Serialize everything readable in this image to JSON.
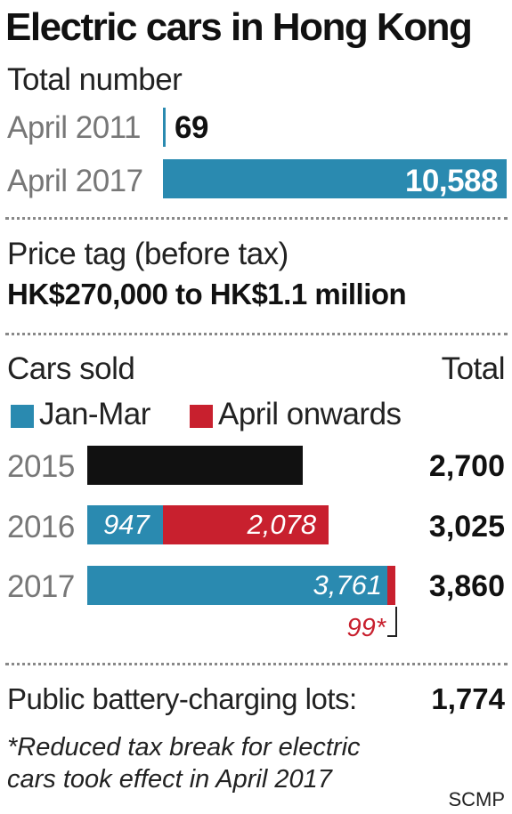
{
  "title": "Electric cars in Hong Kong",
  "total_section": {
    "heading": "Total number",
    "rows": [
      {
        "label": "April 2011",
        "value": "69"
      },
      {
        "label": "April 2017",
        "value": "10,588"
      }
    ]
  },
  "price_section": {
    "heading": "Price tag (before tax)",
    "range": "HK$270,000 to HK$1.1 million"
  },
  "sales_section": {
    "heading": "Cars sold",
    "total_heading": "Total",
    "legend": [
      {
        "label": "Jan-Mar",
        "color": "#2a8ab0"
      },
      {
        "label": "April onwards",
        "color": "#c8202e"
      }
    ],
    "footnote_marker": "99*"
  },
  "charging": {
    "label": "Public battery-charging lots:",
    "value": "1,774"
  },
  "footnote": {
    "line1": "*Reduced tax break for electric",
    "line2": "cars took effect in April 2017"
  },
  "source": "SCMP",
  "colors": {
    "blue": "#2a8ab0",
    "red": "#c8202e",
    "black": "#111111"
  },
  "chart_data": [
    {
      "type": "bar",
      "title": "Total number",
      "categories": [
        "April 2011",
        "April 2017"
      ],
      "values": [
        69,
        10588
      ]
    },
    {
      "type": "bar",
      "title": "Cars sold",
      "categories": [
        "2015",
        "2016",
        "2017"
      ],
      "series": [
        {
          "name": "Jan-Mar",
          "values": [
            null,
            947,
            3761
          ]
        },
        {
          "name": "April onwards",
          "values": [
            null,
            2078,
            99
          ]
        }
      ],
      "totals": [
        2700,
        3025,
        3860
      ],
      "total_labels": [
        "2,700",
        "3,025",
        "3,860"
      ]
    }
  ]
}
